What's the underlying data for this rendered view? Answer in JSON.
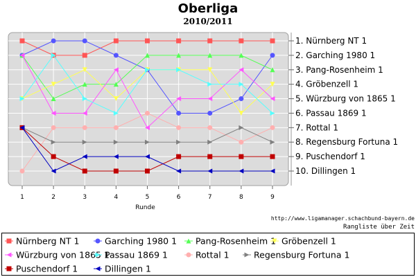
{
  "title": "Oberliga",
  "subtitle": "2010/2011",
  "credit": "http://www.ligamanager.schachbund-bayern.de",
  "subcredit": "Rangliste über Zeit",
  "chart_data": {
    "type": "line",
    "title": "Oberliga",
    "subtitle": "2010/2011",
    "xlabel": "Runde",
    "ylabel": "",
    "x": [
      1,
      2,
      3,
      4,
      5,
      6,
      7,
      8,
      9
    ],
    "xlim": [
      1,
      9
    ],
    "ylim": [
      1,
      10
    ],
    "y_inverted": true,
    "grid": true,
    "legend_position": "bottom",
    "right_labels": [
      "1.  Nürnberg NT 1",
      "2.  Garching 1980 1",
      "3.  Pang-Rosenheim 1",
      "4.  Gröbenzell 1",
      "5.  Würzburg von 1865 1",
      "6.  Passau 1869 1",
      "7.  Rottal 1",
      "8.  Regensburg Fortuna 1",
      "9.  Puschendorf 1",
      "10.  Dillingen 1"
    ],
    "series": [
      {
        "name": "Nürnberg NT 1",
        "color": "#ff5555",
        "marker": "square",
        "values": [
          1,
          2,
          2,
          1,
          1,
          1,
          1,
          1,
          1
        ]
      },
      {
        "name": "Garching 1980 1",
        "color": "#5555ff",
        "marker": "circle",
        "values": [
          2,
          1,
          1,
          2,
          3,
          6,
          6,
          5,
          2
        ]
      },
      {
        "name": "Pang-Rosenheim 1",
        "color": "#55ff55",
        "marker": "triangle-up",
        "values": [
          2,
          5,
          4,
          4,
          2,
          2,
          2,
          2,
          3
        ]
      },
      {
        "name": "Gröbenzell 1",
        "color": "#ffff55",
        "marker": "triangle-down",
        "values": [
          5,
          4,
          3,
          5,
          3,
          3,
          3,
          6,
          4
        ]
      },
      {
        "name": "Würzburg von 1865 1",
        "color": "#ff55ff",
        "marker": "triangle-left",
        "values": [
          2,
          6,
          6,
          3,
          7,
          5,
          5,
          3,
          5
        ]
      },
      {
        "name": "Passau 1869 1",
        "color": "#55ffff",
        "marker": "triangle-right",
        "values": [
          5,
          2,
          5,
          6,
          3,
          3,
          4,
          4,
          6
        ]
      },
      {
        "name": "Rottal 1",
        "color": "#ffafaf",
        "marker": "circle",
        "values": [
          10,
          7,
          7,
          7,
          6,
          7,
          7,
          8,
          7
        ]
      },
      {
        "name": "Regensburg Fortuna 1",
        "color": "#808080",
        "marker": "triangle-right",
        "values": [
          7,
          8,
          8,
          8,
          8,
          8,
          8,
          7,
          8
        ]
      },
      {
        "name": "Puschendorf 1",
        "color": "#c00000",
        "marker": "square",
        "values": [
          7,
          9,
          10,
          10,
          10,
          9,
          9,
          9,
          9
        ]
      },
      {
        "name": "Dillingen 1",
        "color": "#0000c0",
        "marker": "triangle-left",
        "values": [
          7,
          10,
          9,
          9,
          9,
          10,
          10,
          10,
          10
        ]
      }
    ]
  }
}
